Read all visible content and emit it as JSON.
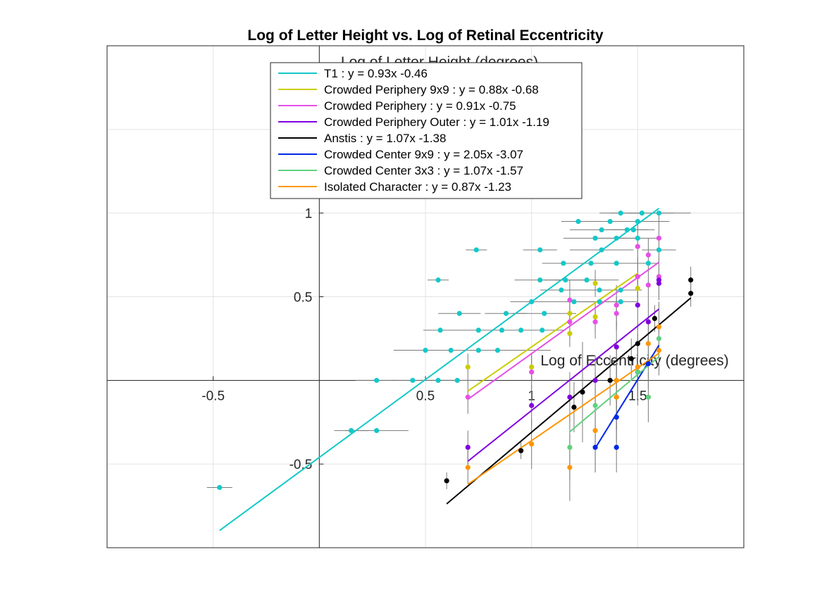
{
  "chart_data": {
    "type": "scatter",
    "title": "Log of Letter Height vs. Log of Retinal Eccentricity",
    "xlabel": "Log of Eccentricity (degrees)",
    "ylabel": "Log of Letter Height (degrees)",
    "xlim": [
      -1.0,
      2.0
    ],
    "ylim": [
      -1.0,
      2.0
    ],
    "x_ticks": [
      -0.5,
      0.5,
      1,
      1.5
    ],
    "x_tick_labels": [
      "-0.5",
      "0.5",
      "1",
      "1.5"
    ],
    "y_ticks": [
      -0.5,
      0.5,
      1
    ],
    "y_tick_labels": [
      "-0.5",
      "0.5",
      "1"
    ],
    "grid": true,
    "legend_position": "top-center",
    "colors": {
      "T1": "#14c8c8",
      "Crowded Periphery 9x9": "#cccc00",
      "Crowded Periphery": "#e650e6",
      "Crowded Periphery Outer": "#8000e0",
      "Anstis": "#000000",
      "Crowded Center 9x9": "#0028e6",
      "Crowded Center 3x3": "#60d080",
      "Isolated Character": "#ff9600"
    },
    "series": [
      {
        "name": "T1 : y = 0.93x -0.46",
        "color": "#14c8c8",
        "fit": {
          "slope": 0.93,
          "intercept": -0.46,
          "x_range": [
            -0.47,
            1.6
          ]
        },
        "points": [
          [
            -0.47,
            -0.64,
            0.06,
            0
          ],
          [
            0.15,
            -0.3,
            0.08,
            0
          ],
          [
            0.27,
            -0.3,
            0.15,
            0
          ],
          [
            0.27,
            0.0,
            0.1,
            0
          ],
          [
            0.44,
            0.0,
            0.1,
            0
          ],
          [
            0.56,
            0.0,
            0.1,
            0
          ],
          [
            0.65,
            0.0,
            0.1,
            0
          ],
          [
            0.5,
            0.18,
            0.15,
            0
          ],
          [
            0.62,
            0.18,
            0.1,
            0
          ],
          [
            0.75,
            0.18,
            0.15,
            0
          ],
          [
            0.84,
            0.18,
            0.25,
            0
          ],
          [
            0.57,
            0.3,
            0.08,
            0
          ],
          [
            0.75,
            0.3,
            0.15,
            0
          ],
          [
            0.86,
            0.3,
            0.1,
            0
          ],
          [
            0.95,
            0.3,
            0.2,
            0
          ],
          [
            1.05,
            0.3,
            0.1,
            0
          ],
          [
            0.66,
            0.4,
            0.1,
            0
          ],
          [
            0.88,
            0.4,
            0.1,
            0
          ],
          [
            1.06,
            0.4,
            0.15,
            0
          ],
          [
            0.56,
            0.6,
            0.05,
            0
          ],
          [
            1.04,
            0.6,
            0.12,
            0
          ],
          [
            1.16,
            0.6,
            0.1,
            0
          ],
          [
            1.26,
            0.6,
            0.15,
            0
          ],
          [
            1.14,
            0.54,
            0.1,
            0
          ],
          [
            1.32,
            0.54,
            0.15,
            0
          ],
          [
            1.42,
            0.54,
            0.1,
            0
          ],
          [
            1.0,
            0.47,
            0.1,
            0
          ],
          [
            1.2,
            0.47,
            0.1,
            0
          ],
          [
            1.32,
            0.47,
            0.1,
            0
          ],
          [
            1.42,
            0.47,
            0.08,
            0
          ],
          [
            0.74,
            0.78,
            0.05,
            0
          ],
          [
            1.04,
            0.78,
            0.08,
            0
          ],
          [
            1.15,
            0.7,
            0.1,
            0
          ],
          [
            1.28,
            0.7,
            0.12,
            0
          ],
          [
            1.4,
            0.7,
            0.1,
            0
          ],
          [
            1.33,
            0.78,
            0.15,
            0
          ],
          [
            1.3,
            0.85,
            0.15,
            0
          ],
          [
            1.4,
            0.85,
            0.1,
            0
          ],
          [
            1.5,
            0.85,
            0.1,
            0
          ],
          [
            1.33,
            0.9,
            0.15,
            0
          ],
          [
            1.45,
            0.9,
            0.1,
            0
          ],
          [
            1.48,
            0.9,
            0.1,
            0
          ],
          [
            1.22,
            0.95,
            0.08,
            0
          ],
          [
            1.37,
            0.95,
            0.12,
            0
          ],
          [
            1.5,
            0.95,
            0.15,
            0
          ],
          [
            1.42,
            1.0,
            0.1,
            0
          ],
          [
            1.52,
            1.0,
            0.15,
            0
          ],
          [
            1.6,
            1.0,
            0.15,
            0
          ],
          [
            1.55,
            0.7,
            0.05,
            0
          ],
          [
            1.6,
            0.78,
            0.08,
            0
          ]
        ]
      },
      {
        "name": "Crowded Periphery 9x9 : y = 0.88x -0.68",
        "color": "#cccc00",
        "fit": {
          "slope": 0.88,
          "intercept": -0.68,
          "x_range": [
            0.7,
            1.5
          ]
        },
        "points": [
          [
            0.7,
            0.08,
            0,
            0.08
          ],
          [
            1.0,
            0.08,
            0,
            0.08
          ],
          [
            1.18,
            0.28,
            0,
            0.08
          ],
          [
            1.18,
            0.4,
            0,
            0.08
          ],
          [
            1.3,
            0.58,
            0,
            0.08
          ],
          [
            1.3,
            0.38,
            0,
            0.08
          ],
          [
            1.5,
            0.55,
            0,
            0.08
          ]
        ]
      },
      {
        "name": "Crowded Periphery : y = 0.91x -0.75",
        "color": "#e650e6",
        "fit": {
          "slope": 0.91,
          "intercept": -0.75,
          "x_range": [
            0.7,
            1.6
          ]
        },
        "points": [
          [
            0.7,
            -0.1,
            0,
            0.1
          ],
          [
            1.0,
            0.05,
            0,
            0.1
          ],
          [
            1.18,
            0.48,
            0,
            0.12
          ],
          [
            1.18,
            0.35,
            0,
            0.1
          ],
          [
            1.3,
            0.35,
            0,
            0.1
          ],
          [
            1.4,
            0.45,
            0,
            0.12
          ],
          [
            1.4,
            0.4,
            0,
            0.1
          ],
          [
            1.5,
            0.8,
            0,
            0.15
          ],
          [
            1.5,
            0.62,
            0,
            0.12
          ],
          [
            1.55,
            0.75,
            0,
            0.1
          ],
          [
            1.6,
            0.85,
            0,
            0.15
          ],
          [
            1.6,
            0.62,
            0,
            0.12
          ],
          [
            1.55,
            0.57,
            0,
            0.1
          ]
        ]
      },
      {
        "name": "Crowded Periphery Outer : y = 1.01x -1.19",
        "color": "#8000e0",
        "fit": {
          "slope": 1.01,
          "intercept": -1.19,
          "x_range": [
            0.7,
            1.6
          ]
        },
        "points": [
          [
            0.7,
            -0.4,
            0,
            0.1
          ],
          [
            1.0,
            -0.15,
            0,
            0.12
          ],
          [
            1.18,
            -0.1,
            0,
            0.15
          ],
          [
            1.3,
            0.0,
            0,
            0.15
          ],
          [
            1.4,
            0.2,
            0,
            0.15
          ],
          [
            1.5,
            0.05,
            0,
            0.15
          ],
          [
            1.5,
            0.45,
            0,
            0.15
          ],
          [
            1.55,
            0.35,
            0,
            0.12
          ],
          [
            1.6,
            0.6,
            0,
            0.12
          ],
          [
            1.6,
            0.58,
            0,
            0.1
          ]
        ]
      },
      {
        "name": "Anstis : y = 1.07x -1.38",
        "color": "#000000",
        "fit": {
          "slope": 1.07,
          "intercept": -1.38,
          "x_range": [
            0.6,
            1.75
          ]
        },
        "points": [
          [
            0.6,
            -0.6,
            0,
            0.05
          ],
          [
            0.95,
            -0.42,
            0,
            0.05
          ],
          [
            1.2,
            -0.16,
            0,
            0.15
          ],
          [
            1.24,
            -0.07,
            0,
            0.3
          ],
          [
            1.37,
            0.0,
            0,
            0.15
          ],
          [
            1.47,
            0.13,
            0,
            0.12
          ],
          [
            1.5,
            0.22,
            0,
            0.12
          ],
          [
            1.58,
            0.37,
            0,
            0.08
          ],
          [
            1.75,
            0.6,
            0,
            0.08
          ],
          [
            1.75,
            0.52,
            0,
            0.08
          ]
        ]
      },
      {
        "name": "Crowded Center 9x9 : y = 2.05x -3.07",
        "color": "#0028e6",
        "fit": {
          "slope": 2.05,
          "intercept": -3.07,
          "x_range": [
            1.3,
            1.6
          ]
        },
        "points": [
          [
            1.3,
            -0.4,
            0,
            0.15
          ],
          [
            1.4,
            -0.4,
            0,
            0.15
          ],
          [
            1.4,
            -0.22,
            0,
            0.15
          ],
          [
            1.5,
            0.05,
            0,
            0.15
          ],
          [
            1.55,
            0.1,
            0,
            0.15
          ]
        ]
      },
      {
        "name": "Crowded Center 3x3 : y = 1.07x -1.57",
        "color": "#60d080",
        "fit": {
          "slope": 1.07,
          "intercept": -1.57,
          "x_range": [
            1.18,
            1.6
          ]
        },
        "points": [
          [
            1.18,
            -0.4,
            0,
            0.2
          ],
          [
            1.3,
            -0.15,
            0,
            0.2
          ],
          [
            1.4,
            -0.1,
            0,
            0.2
          ],
          [
            1.5,
            0.05,
            0,
            0.2
          ],
          [
            1.55,
            -0.1,
            0,
            0.15
          ],
          [
            1.6,
            0.25,
            0,
            0.15
          ]
        ]
      },
      {
        "name": "Isolated Character : y = 0.87x -1.23",
        "color": "#ff9600",
        "fit": {
          "slope": 0.87,
          "intercept": -1.23,
          "x_range": [
            0.7,
            1.6
          ]
        },
        "points": [
          [
            0.7,
            -0.52,
            0,
            0.1
          ],
          [
            1.0,
            -0.38,
            0,
            0.15
          ],
          [
            1.18,
            -0.52,
            0,
            0.2
          ],
          [
            1.3,
            -0.3,
            0,
            0.25
          ],
          [
            1.4,
            -0.1,
            0,
            0.2
          ],
          [
            1.4,
            0.0,
            0,
            0.2
          ],
          [
            1.5,
            0.08,
            0,
            0.2
          ],
          [
            1.55,
            0.22,
            0,
            0.15
          ],
          [
            1.6,
            0.18,
            0,
            0.15
          ],
          [
            1.6,
            0.32,
            0,
            0.15
          ]
        ]
      }
    ]
  }
}
